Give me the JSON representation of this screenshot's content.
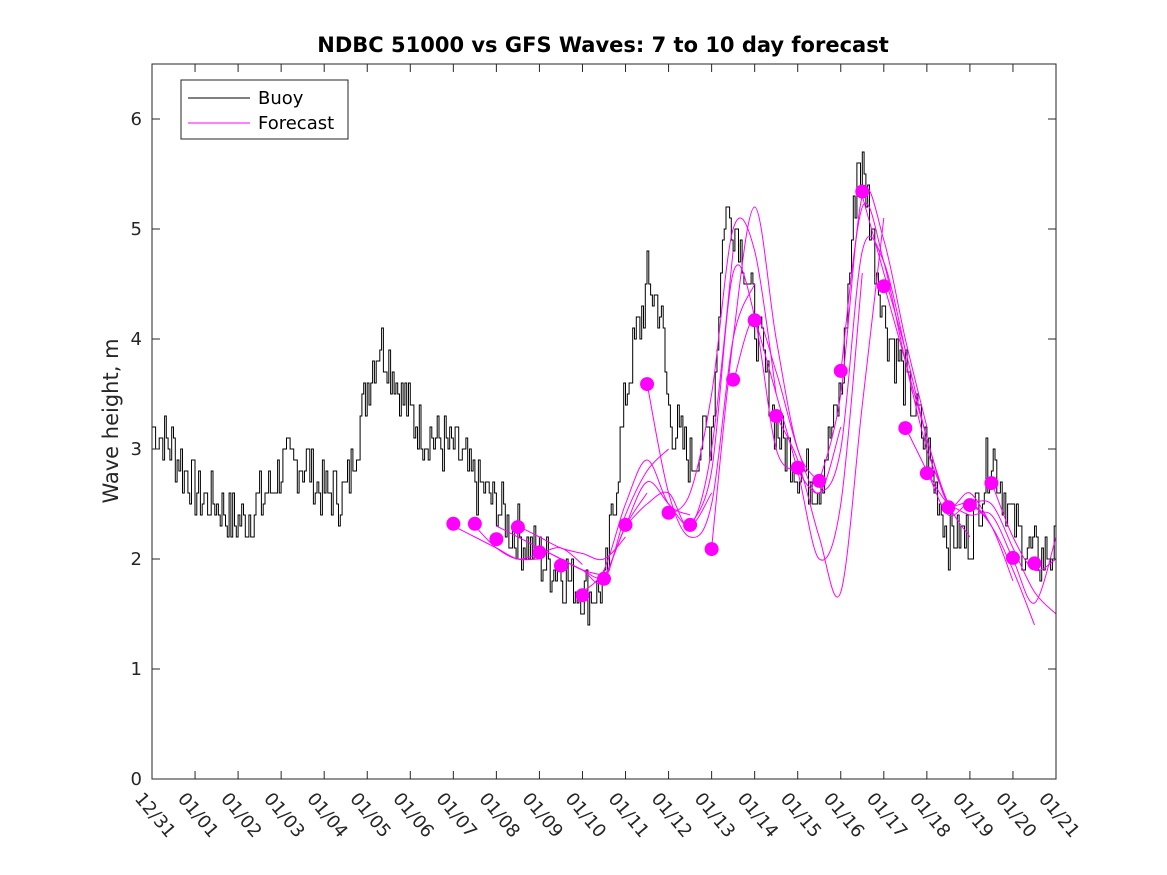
{
  "chart_data": {
    "type": "line",
    "title": "NDBC 51000 vs GFS Waves: 7 to 10 day forecast",
    "xlabel": "",
    "ylabel": "Wave height, m",
    "xlim": [
      0,
      21
    ],
    "ylim": [
      0,
      6.5
    ],
    "y_ticks": [
      0,
      1,
      2,
      3,
      4,
      5,
      6
    ],
    "x_tick_labels": [
      "12/31",
      "01/01",
      "01/02",
      "01/03",
      "01/04",
      "01/05",
      "01/06",
      "01/07",
      "01/08",
      "01/09",
      "01/10",
      "01/11",
      "01/12",
      "01/13",
      "01/14",
      "01/15",
      "01/16",
      "01/17",
      "01/18",
      "01/19",
      "01/20",
      "01/21"
    ],
    "legend": {
      "placement": "top-left",
      "entries": [
        "Buoy",
        "Forecast"
      ]
    },
    "colors": {
      "buoy": "#000000",
      "forecast": "#ff00ff"
    },
    "buoy": {
      "name": "Buoy",
      "x": [
        0,
        0.5,
        1,
        1.5,
        2,
        2.5,
        3,
        3.5,
        4,
        4.5,
        5,
        5.3,
        5.5,
        6,
        6.5,
        7,
        7.5,
        8,
        8.5,
        9,
        9.5,
        10,
        10.5,
        11,
        11.5,
        11.8,
        12,
        12.5,
        13,
        13.3,
        13.6,
        14,
        14.5,
        15,
        15.5,
        16,
        16.4,
        16.6,
        17,
        17.5,
        18,
        18.5,
        19,
        19.5,
        20,
        20.5,
        21
      ],
      "y": [
        3.2,
        3.0,
        2.6,
        2.5,
        2.3,
        2.5,
        2.8,
        2.9,
        2.6,
        2.6,
        3.6,
        4.0,
        3.8,
        3.3,
        3.1,
        3.0,
        2.7,
        2.5,
        2.2,
        2.0,
        1.9,
        1.7,
        1.7,
        3.5,
        4.5,
        4.3,
        3.3,
        2.9,
        3.2,
        5.2,
        5.0,
        4.2,
        3.2,
        2.8,
        2.7,
        3.5,
        5.7,
        5.3,
        4.2,
        3.6,
        3.0,
        2.2,
        2.2,
        3.0,
        2.3,
        2.0,
        2.1
      ]
    },
    "forecast_runs": [
      {
        "x": [
          7.0,
          7.5,
          8.0,
          8.5,
          9.0
        ],
        "y": [
          2.3,
          2.2,
          2.1,
          2.0,
          2.0
        ]
      },
      {
        "x": [
          7.5,
          8.0,
          8.5,
          9.0,
          9.5,
          10.0
        ],
        "y": [
          2.3,
          2.1,
          2.0,
          2.05,
          2.1,
          1.95
        ]
      },
      {
        "x": [
          8.0,
          8.5,
          9.0,
          9.5,
          10.0,
          10.5
        ],
        "y": [
          2.3,
          2.2,
          2.1,
          2.0,
          1.9,
          1.85
        ]
      },
      {
        "x": [
          8.5,
          9.0,
          9.5,
          10.0,
          10.5,
          11.0
        ],
        "y": [
          2.3,
          2.2,
          2.1,
          2.05,
          2.0,
          2.2
        ]
      },
      {
        "x": [
          9.0,
          9.5,
          10.0,
          10.5,
          11.0,
          11.5
        ],
        "y": [
          2.1,
          2.0,
          1.9,
          1.85,
          2.3,
          2.6
        ]
      },
      {
        "x": [
          9.5,
          10.0,
          10.5,
          11.0,
          11.5,
          12.0
        ],
        "y": [
          2.0,
          1.9,
          1.8,
          2.4,
          2.8,
          3.0
        ]
      },
      {
        "x": [
          10.0,
          10.5,
          11.0,
          11.5,
          12.0,
          12.5
        ],
        "y": [
          1.7,
          1.9,
          2.5,
          2.9,
          2.5,
          2.4
        ]
      },
      {
        "x": [
          10.5,
          11.0,
          11.5,
          12.0,
          12.5,
          13.0
        ],
        "y": [
          1.8,
          2.3,
          2.7,
          2.5,
          2.3,
          2.6
        ]
      },
      {
        "x": [
          11.0,
          11.5,
          12.0,
          12.5,
          13.0,
          13.5
        ],
        "y": [
          2.3,
          2.5,
          2.6,
          2.3,
          3.0,
          4.8
        ]
      },
      {
        "x": [
          11.5,
          12.0,
          12.5,
          13.0,
          13.5,
          14.0
        ],
        "y": [
          3.6,
          2.6,
          2.2,
          2.5,
          4.0,
          4.5
        ]
      },
      {
        "x": [
          12.0,
          12.5,
          13.0,
          13.5,
          14.0,
          14.5
        ],
        "y": [
          2.4,
          2.6,
          3.5,
          5.0,
          4.8,
          3.5
        ]
      },
      {
        "x": [
          12.5,
          13.0,
          13.5,
          14.0,
          14.5,
          15.0
        ],
        "y": [
          2.3,
          2.8,
          4.6,
          4.2,
          3.0,
          2.8
        ]
      },
      {
        "x": [
          13.0,
          13.5,
          14.0,
          14.5,
          15.0,
          15.5
        ],
        "y": [
          2.1,
          4.0,
          5.2,
          4.0,
          3.0,
          2.7
        ]
      },
      {
        "x": [
          13.5,
          14.0,
          14.5,
          15.0,
          15.5,
          16.0
        ],
        "y": [
          3.6,
          4.2,
          3.7,
          3.0,
          2.6,
          3.2
        ]
      },
      {
        "x": [
          14.0,
          14.5,
          15.0,
          15.5,
          16.0,
          16.5
        ],
        "y": [
          4.2,
          3.5,
          2.8,
          2.0,
          2.5,
          4.6
        ]
      },
      {
        "x": [
          14.5,
          15.0,
          15.5,
          16.0,
          16.5,
          17.0
        ],
        "y": [
          3.3,
          2.9,
          2.2,
          1.7,
          3.4,
          5.1
        ]
      },
      {
        "x": [
          15.0,
          15.5,
          16.0,
          16.5,
          17.0,
          17.5
        ],
        "y": [
          2.8,
          2.6,
          3.0,
          4.8,
          4.7,
          3.9
        ]
      },
      {
        "x": [
          15.5,
          16.0,
          16.5,
          17.0,
          17.5,
          18.0
        ],
        "y": [
          2.7,
          3.5,
          5.3,
          4.9,
          4.0,
          3.2
        ]
      },
      {
        "x": [
          16.0,
          16.5,
          17.0,
          17.5,
          18.0,
          18.5
        ],
        "y": [
          3.7,
          5.2,
          4.7,
          3.8,
          3.0,
          2.5
        ]
      },
      {
        "x": [
          16.5,
          17.0,
          17.5,
          18.0,
          18.5,
          19.0
        ],
        "y": [
          5.3,
          4.6,
          3.9,
          3.1,
          2.5,
          2.2
        ]
      },
      {
        "x": [
          17.0,
          17.5,
          18.0,
          18.5,
          19.0,
          19.5
        ],
        "y": [
          4.5,
          3.8,
          3.1,
          2.5,
          2.6,
          2.3
        ]
      },
      {
        "x": [
          17.5,
          18.0,
          18.5,
          19.0,
          19.5,
          20.0
        ],
        "y": [
          3.2,
          2.8,
          2.4,
          2.5,
          2.3,
          1.8
        ]
      },
      {
        "x": [
          18.0,
          18.5,
          19.0,
          19.5,
          20.0,
          20.5
        ],
        "y": [
          2.8,
          2.5,
          2.5,
          2.3,
          1.9,
          1.4
        ]
      },
      {
        "x": [
          18.5,
          19.0,
          19.5,
          20.0,
          20.5,
          21.0
        ],
        "y": [
          2.5,
          2.4,
          2.4,
          2.0,
          1.6,
          2.2
        ]
      },
      {
        "x": [
          19.0,
          19.5,
          20.0,
          20.5,
          21.0
        ],
        "y": [
          2.5,
          2.5,
          2.1,
          1.7,
          1.5
        ]
      },
      {
        "x": [
          19.5,
          20.0,
          20.5,
          21.0
        ],
        "y": [
          2.7,
          2.2,
          1.9,
          2.0
        ]
      }
    ],
    "forecast_points": {
      "x": [
        7.0,
        7.5,
        8.0,
        8.5,
        9.0,
        9.5,
        10.0,
        10.5,
        11.0,
        11.5,
        12.0,
        12.5,
        13.0,
        13.5,
        14.0,
        14.5,
        15.0,
        15.5,
        16.0,
        16.5,
        17.0,
        17.5,
        18.0,
        18.5,
        19.0,
        19.5,
        20.0,
        20.5
      ],
      "y": [
        2.32,
        2.32,
        2.18,
        2.29,
        2.06,
        1.94,
        1.67,
        1.82,
        2.31,
        3.59,
        2.42,
        2.31,
        2.09,
        3.63,
        4.17,
        3.3,
        2.83,
        2.71,
        3.71,
        5.34,
        4.48,
        3.19,
        2.78,
        2.47,
        2.49,
        2.69,
        2.01,
        1.96
      ]
    }
  }
}
